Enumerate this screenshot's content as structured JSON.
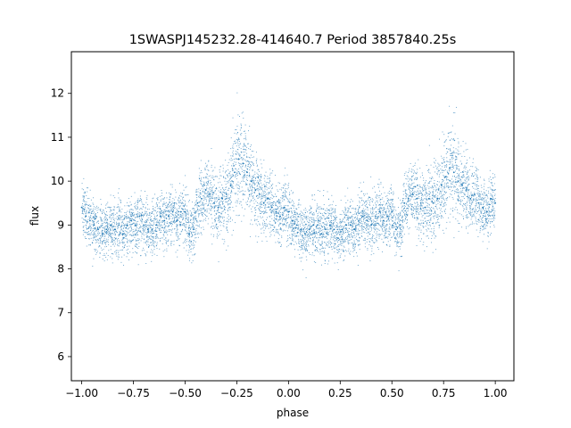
{
  "chart_data": {
    "type": "scatter",
    "title": "1SWASPJ145232.28-414640.7 Period 3857840.25s",
    "xlabel": "phase",
    "ylabel": "flux",
    "xlim": [
      -1.05,
      1.09
    ],
    "ylim": [
      5.45,
      12.95
    ],
    "xticks": [
      -1.0,
      -0.75,
      -0.5,
      -0.25,
      0.0,
      0.25,
      0.5,
      0.75,
      1.0
    ],
    "xtick_labels": [
      "−1.00",
      "−0.75",
      "−0.50",
      "−0.25",
      "0.00",
      "0.25",
      "0.50",
      "0.75",
      "1.00"
    ],
    "yticks": [
      6,
      7,
      8,
      9,
      10,
      11,
      12
    ],
    "ytick_labels": [
      "6",
      "7",
      "8",
      "9",
      "10",
      "11",
      "12"
    ],
    "grid": false,
    "marker_color": "#1f77b4",
    "series": [
      {
        "x": [
          -1.0,
          -0.98,
          -0.96,
          -0.94,
          -0.92,
          -0.9,
          -0.88,
          -0.86,
          -0.84,
          -0.82,
          -0.8,
          -0.78,
          -0.76,
          -0.74,
          -0.72,
          -0.7,
          -0.68,
          -0.66,
          -0.64,
          -0.62,
          -0.6,
          -0.58,
          -0.56,
          -0.54,
          -0.52,
          -0.5,
          -0.48,
          -0.46,
          -0.44,
          -0.42,
          -0.4,
          -0.38,
          -0.36,
          -0.34,
          -0.32,
          -0.3,
          -0.28,
          -0.26,
          -0.24,
          -0.22,
          -0.2,
          -0.18,
          -0.16,
          -0.14,
          -0.12,
          -0.1,
          -0.08,
          -0.06,
          -0.04,
          -0.02,
          0.0,
          0.02,
          0.04,
          0.06,
          0.08,
          0.1,
          0.12,
          0.14,
          0.16,
          0.18,
          0.2,
          0.22,
          0.24,
          0.26,
          0.28,
          0.3,
          0.32,
          0.34,
          0.36,
          0.38,
          0.4,
          0.42,
          0.44,
          0.46,
          0.48,
          0.5,
          0.52,
          0.54,
          0.56,
          0.58,
          0.6,
          0.62,
          0.64,
          0.66,
          0.68,
          0.7,
          0.72,
          0.74,
          0.76,
          0.78,
          0.8,
          0.82,
          0.84,
          0.86,
          0.88,
          0.9,
          0.92,
          0.94,
          0.96,
          0.98,
          1.0
        ],
        "y": [
          9.4,
          9.2,
          9.1,
          9.0,
          8.9,
          8.8,
          8.9,
          9.0,
          8.9,
          9.0,
          8.8,
          9.0,
          9.1,
          9.0,
          9.2,
          9.0,
          8.9,
          8.9,
          9.0,
          9.2,
          9.1,
          9.2,
          9.3,
          9.1,
          9.3,
          9.3,
          8.8,
          8.9,
          9.5,
          9.6,
          9.8,
          9.7,
          9.5,
          9.4,
          9.6,
          9.7,
          9.9,
          10.2,
          10.5,
          10.4,
          10.2,
          10.0,
          9.8,
          9.7,
          9.5,
          9.6,
          9.4,
          9.3,
          9.2,
          9.4,
          9.3,
          9.1,
          9.0,
          8.9,
          8.8,
          8.9,
          9.0,
          9.0,
          8.8,
          8.9,
          9.0,
          8.9,
          8.7,
          8.9,
          9.0,
          9.0,
          8.9,
          9.1,
          9.2,
          9.1,
          9.0,
          9.2,
          9.3,
          9.1,
          9.2,
          9.3,
          8.9,
          9.0,
          9.5,
          9.6,
          9.7,
          9.6,
          9.5,
          9.4,
          9.6,
          9.5,
          9.6,
          9.9,
          10.1,
          10.3,
          10.2,
          10.0,
          9.9,
          9.8,
          9.6,
          9.7,
          9.5,
          9.4,
          9.3,
          9.6,
          9.5
        ],
        "scatter": [
          0.45,
          0.45,
          0.45,
          0.45,
          0.45,
          0.45,
          0.45,
          0.45,
          0.45,
          0.45,
          0.45,
          0.45,
          0.45,
          0.45,
          0.45,
          0.45,
          0.45,
          0.45,
          0.45,
          0.45,
          0.45,
          0.45,
          0.45,
          0.45,
          0.45,
          0.45,
          0.45,
          0.45,
          0.5,
          0.5,
          0.5,
          0.55,
          0.6,
          0.6,
          0.6,
          0.65,
          0.7,
          0.75,
          0.8,
          0.75,
          0.7,
          0.65,
          0.6,
          0.55,
          0.5,
          0.5,
          0.45,
          0.45,
          0.45,
          0.45,
          0.45,
          0.45,
          0.45,
          0.45,
          0.45,
          0.45,
          0.45,
          0.45,
          0.45,
          0.45,
          0.45,
          0.45,
          0.45,
          0.45,
          0.45,
          0.45,
          0.45,
          0.45,
          0.45,
          0.45,
          0.45,
          0.45,
          0.45,
          0.45,
          0.45,
          0.45,
          0.45,
          0.45,
          0.5,
          0.5,
          0.5,
          0.55,
          0.6,
          0.6,
          0.6,
          0.65,
          0.7,
          0.75,
          0.8,
          0.75,
          0.7,
          0.65,
          0.6,
          0.55,
          0.5,
          0.5,
          0.45,
          0.45,
          0.45,
          0.45,
          0.45
        ]
      }
    ]
  }
}
